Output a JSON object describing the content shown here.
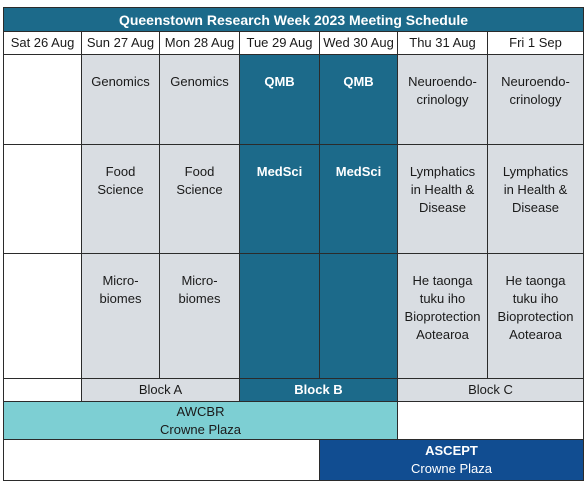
{
  "title": "Queenstown Research Week 2023 Meeting Schedule",
  "days": [
    "Sat 26 Aug",
    "Sun 27 Aug",
    "Mon 28 Aug",
    "Tue 29 Aug",
    "Wed 30 Aug",
    "Thu 31 Aug",
    "Fri 1 Sep"
  ],
  "rows": [
    [
      "",
      "Genomics",
      "Genomics",
      "QMB",
      "QMB",
      "Neuroendo-\ncrinology",
      "Neuroendo-\ncrinology"
    ],
    [
      "",
      "Food\nScience",
      "Food\nScience",
      "MedSci",
      "MedSci",
      "Lymphatics\nin Health &\nDisease",
      "Lymphatics\nin Health &\nDisease"
    ],
    [
      "",
      "Micro-\nbiomes",
      "Micro-\nbiomes",
      "",
      "",
      "He taonga\ntuku iho\nBioprotection\nAotearoa",
      "He taonga\ntuku iho\nBioprotection\nAotearoa"
    ]
  ],
  "blocks": {
    "a": "Block A",
    "b": "Block B",
    "c": "Block C"
  },
  "awcbr": {
    "name": "AWCBR",
    "venue": "Crowne Plaza"
  },
  "ascept": {
    "name": "ASCEPT",
    "venue": "Crowne Plaza"
  },
  "colors": {
    "teal": "#1c6a8a",
    "grey": "#d9dde2",
    "awcbr": "#7dcfd3",
    "ascept": "#114d91"
  }
}
